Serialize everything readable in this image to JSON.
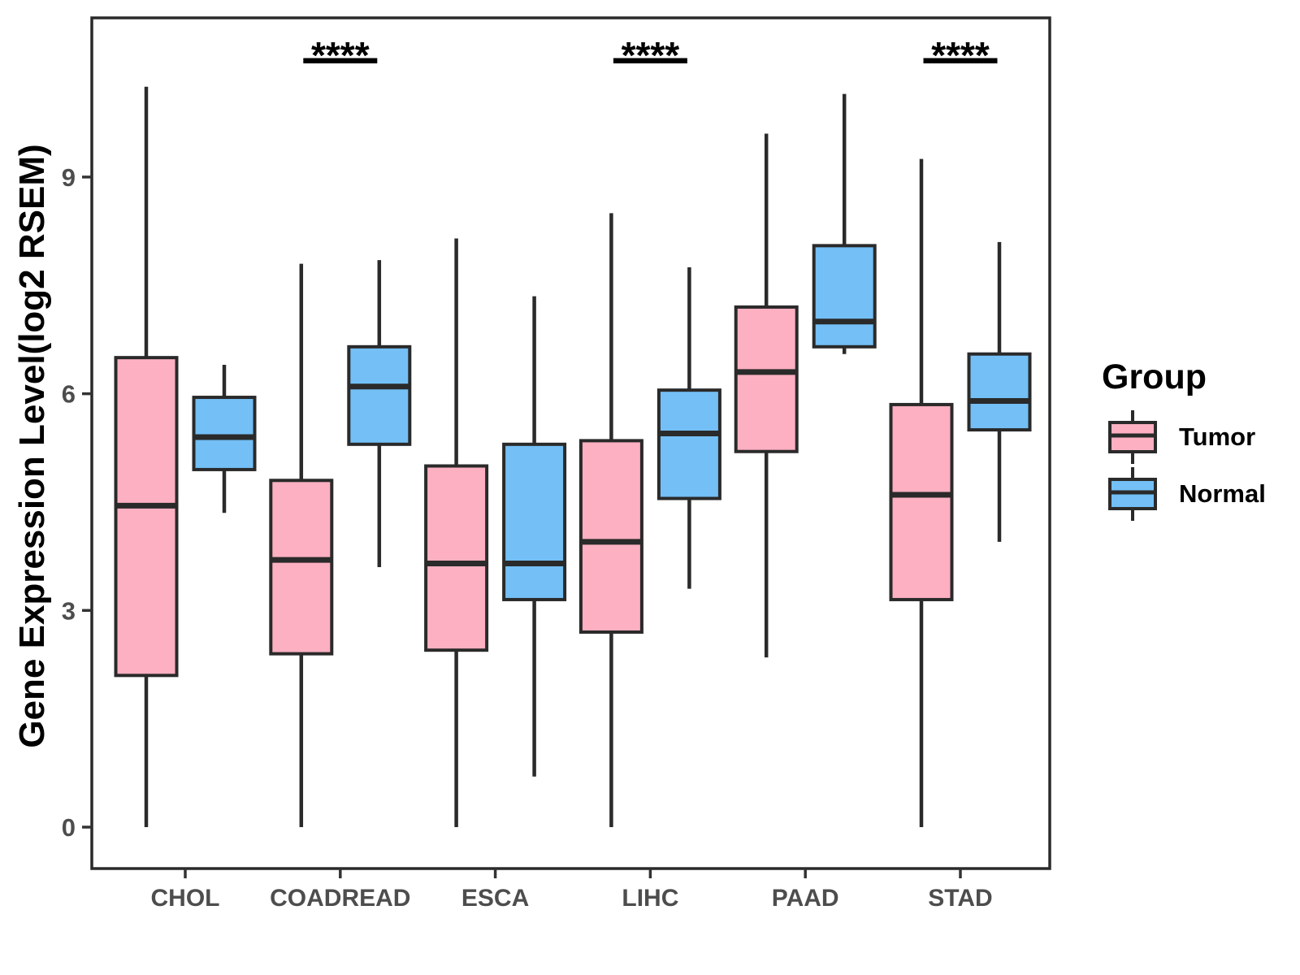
{
  "figure": {
    "y_axis_title": "Gene Expression Level(log2 RSEM)"
  },
  "legend": {
    "title": "Group",
    "items": [
      {
        "label": "Tumor",
        "color": "#FCB0C1"
      },
      {
        "label": "Normal",
        "color": "#73BFF6"
      }
    ]
  },
  "style": {
    "tumor_fill": "#FCB0C1",
    "normal_fill": "#73BFF6",
    "line_color": "#2A2A2A",
    "axis_text_color": "#4D4D4D",
    "annotation_color": "#000000"
  },
  "chart_data": {
    "type": "boxplot",
    "title": "",
    "xlabel": "",
    "ylabel": "Gene Expression Level(log2 RSEM)",
    "categories": [
      "CHOL",
      "COADREAD",
      "ESCA",
      "LIHC",
      "PAAD",
      "STAD"
    ],
    "y_ticks": [
      0,
      3,
      6,
      9
    ],
    "ylim": [
      -0.6,
      11.2
    ],
    "grid": false,
    "legend_position": "right",
    "series": [
      {
        "name": "Tumor",
        "color": "#FCB0C1",
        "boxes": [
          {
            "min": 0,
            "q1": 2.1,
            "median": 4.45,
            "q3": 6.5,
            "max": 10.25
          },
          {
            "min": 0,
            "q1": 2.4,
            "median": 3.7,
            "q3": 4.8,
            "max": 7.8
          },
          {
            "min": 0,
            "q1": 2.45,
            "median": 3.65,
            "q3": 5.0,
            "max": 8.15
          },
          {
            "min": 0,
            "q1": 2.7,
            "median": 3.95,
            "q3": 5.35,
            "max": 8.5
          },
          {
            "min": 2.35,
            "q1": 5.2,
            "median": 6.3,
            "q3": 7.2,
            "max": 9.6
          },
          {
            "min": 0,
            "q1": 3.15,
            "median": 4.6,
            "q3": 5.85,
            "max": 9.25
          }
        ]
      },
      {
        "name": "Normal",
        "color": "#73BFF6",
        "boxes": [
          {
            "min": 4.35,
            "q1": 4.95,
            "median": 5.4,
            "q3": 5.95,
            "max": 6.4
          },
          {
            "min": 3.6,
            "q1": 5.3,
            "median": 6.1,
            "q3": 6.65,
            "max": 7.85
          },
          {
            "min": 0.7,
            "q1": 3.15,
            "median": 3.65,
            "q3": 5.3,
            "max": 7.35
          },
          {
            "min": 3.3,
            "q1": 4.55,
            "median": 5.45,
            "q3": 6.05,
            "max": 7.75
          },
          {
            "min": 6.55,
            "q1": 6.65,
            "median": 7.0,
            "q3": 8.05,
            "max": 10.15
          },
          {
            "min": 3.95,
            "q1": 5.5,
            "median": 5.9,
            "q3": 6.55,
            "max": 8.1
          }
        ]
      }
    ],
    "significance": [
      {
        "category": "COADREAD",
        "label": "****"
      },
      {
        "category": "LIHC",
        "label": "****"
      },
      {
        "category": "STAD",
        "label": "****"
      }
    ]
  }
}
